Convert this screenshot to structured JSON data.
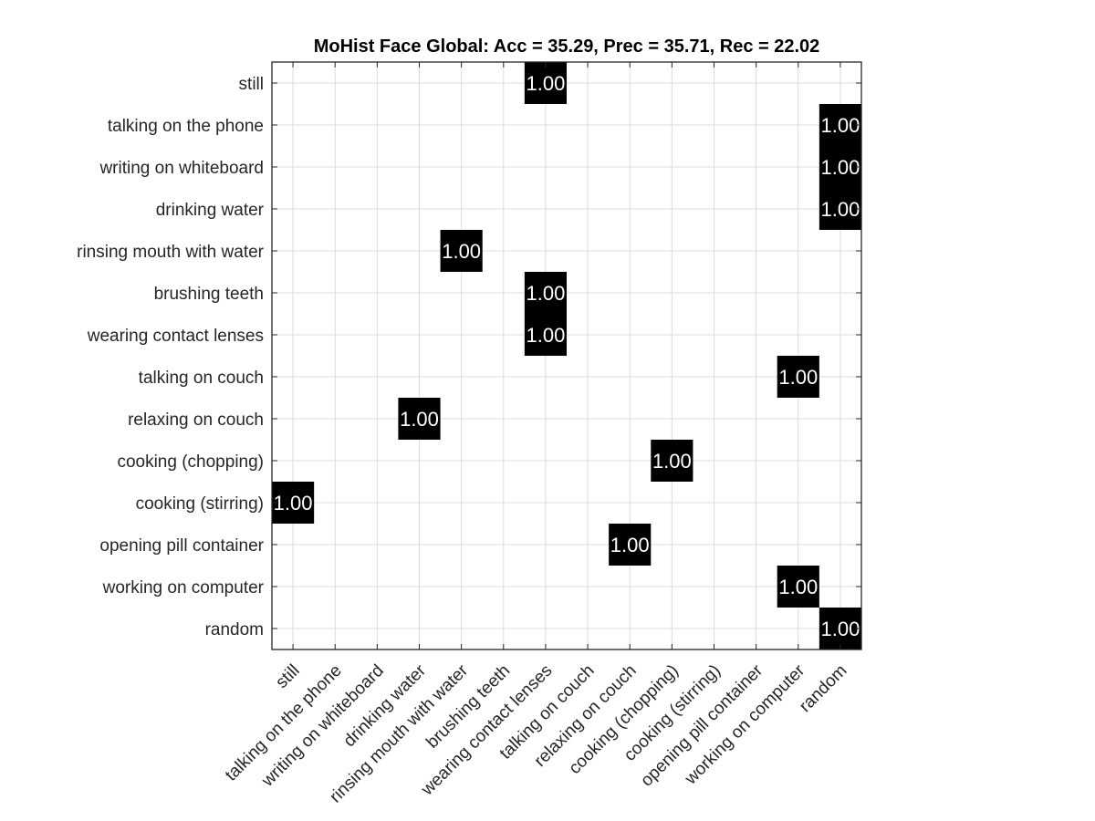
{
  "chart_data": {
    "type": "heatmap",
    "title": "MoHist Face Global: Acc = 35.29, Prec = 35.71, Rec = 22.02",
    "xlabel": "",
    "ylabel": "",
    "grid": true,
    "colors": {
      "filled_cell": "#000000",
      "cell_text": "#ffffff",
      "grid": "#dcdcdc",
      "axes": "#262626",
      "background": "#ffffff"
    },
    "row_labels": [
      "still",
      "talking on the phone",
      "writing on whiteboard",
      "drinking water",
      "rinsing mouth with water",
      "brushing teeth",
      "wearing contact lenses",
      "talking on couch",
      "relaxing on couch",
      "cooking (chopping)",
      "cooking (stirring)",
      "opening pill container",
      "working on computer",
      "random"
    ],
    "column_labels": [
      "still",
      "talking on the phone",
      "writing on whiteboard",
      "drinking water",
      "rinsing mouth with water",
      "brushing teeth",
      "wearing contact lenses",
      "talking on couch",
      "relaxing on couch",
      "cooking (chopping)",
      "cooking (stirring)",
      "opening pill container",
      "working on computer",
      "random"
    ],
    "cells": [
      {
        "row": "still",
        "column": "wearing contact lenses",
        "value": 1.0,
        "label": "1.00"
      },
      {
        "row": "talking on the phone",
        "column": "random",
        "value": 1.0,
        "label": "1.00"
      },
      {
        "row": "writing on whiteboard",
        "column": "random",
        "value": 1.0,
        "label": "1.00"
      },
      {
        "row": "drinking water",
        "column": "random",
        "value": 1.0,
        "label": "1.00"
      },
      {
        "row": "rinsing mouth with water",
        "column": "rinsing mouth with water",
        "value": 1.0,
        "label": "1.00"
      },
      {
        "row": "brushing teeth",
        "column": "wearing contact lenses",
        "value": 1.0,
        "label": "1.00"
      },
      {
        "row": "wearing contact lenses",
        "column": "wearing contact lenses",
        "value": 1.0,
        "label": "1.00"
      },
      {
        "row": "talking on couch",
        "column": "working on computer",
        "value": 1.0,
        "label": "1.00"
      },
      {
        "row": "relaxing on couch",
        "column": "drinking water",
        "value": 1.0,
        "label": "1.00"
      },
      {
        "row": "cooking (chopping)",
        "column": "cooking (chopping)",
        "value": 1.0,
        "label": "1.00"
      },
      {
        "row": "cooking (stirring)",
        "column": "still",
        "value": 1.0,
        "label": "1.00"
      },
      {
        "row": "opening pill container",
        "column": "relaxing on couch",
        "value": 1.0,
        "label": "1.00"
      },
      {
        "row": "working on computer",
        "column": "working on computer",
        "value": 1.0,
        "label": "1.00"
      },
      {
        "row": "random",
        "column": "random",
        "value": 1.0,
        "label": "1.00"
      }
    ]
  }
}
